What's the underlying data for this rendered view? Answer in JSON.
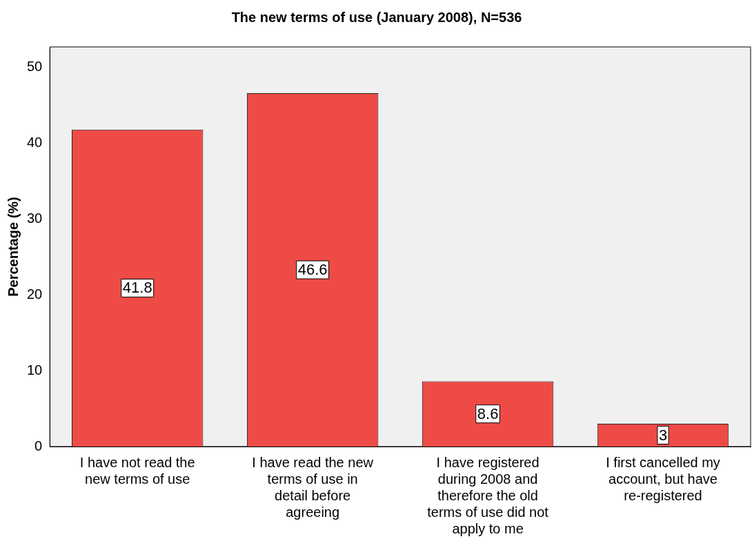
{
  "chart_data": {
    "type": "bar",
    "title": "The new terms of use (January 2008), N=536",
    "ylabel": "Percentage (%)",
    "categories": [
      "I have not read the new terms of use",
      "I have read the new terms of use in detail before agreeing",
      "I have registered during 2008 and therefore the old terms of use did not apply to me",
      "I first cancelled my account, but have re-registered"
    ],
    "values": [
      41.8,
      46.6,
      8.6,
      3
    ],
    "color": "#ee4b46",
    "ylim": [
      0,
      52.7
    ],
    "yticks": [
      0,
      10,
      20,
      30,
      40,
      50
    ],
    "grid": false,
    "legend": false,
    "data_labels": true
  }
}
